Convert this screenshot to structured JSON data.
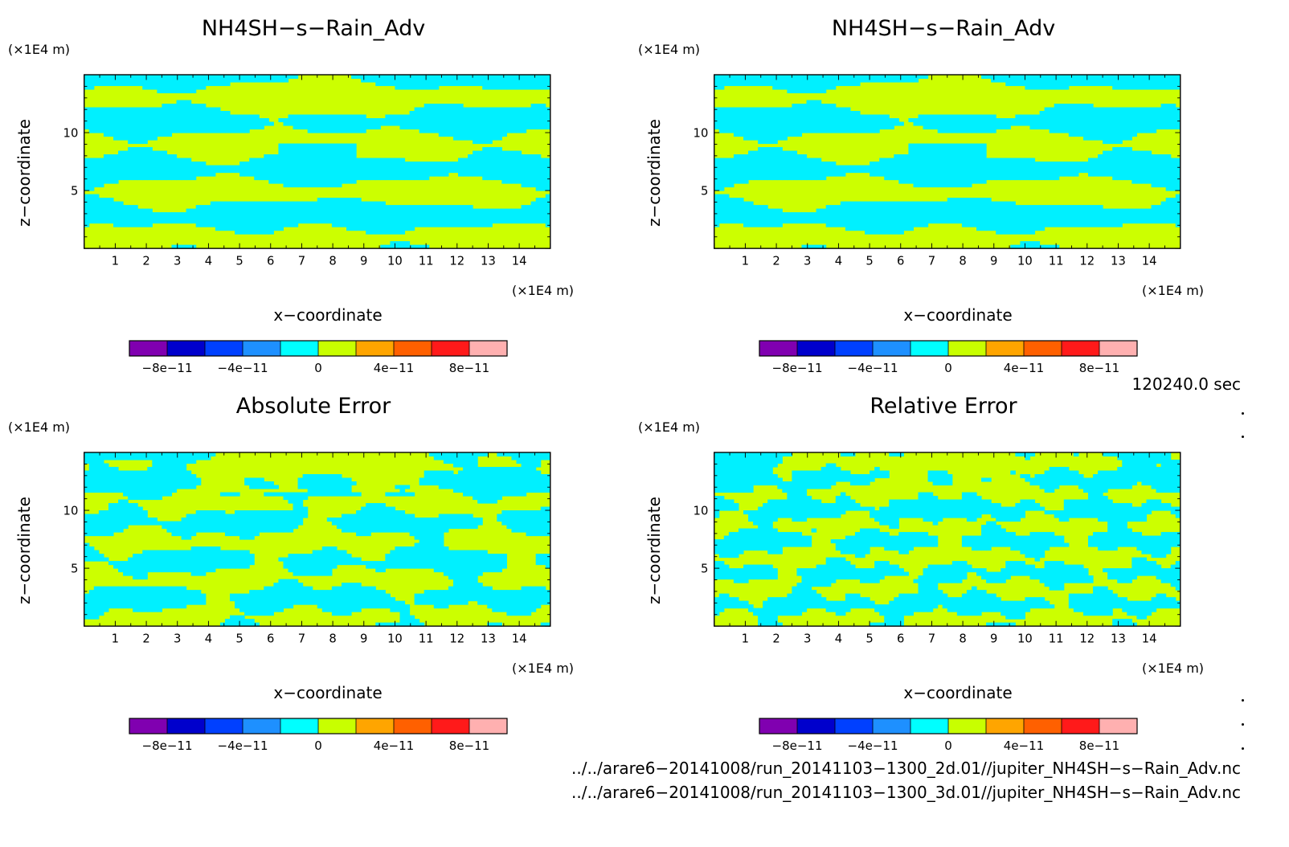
{
  "colors": {
    "levels": [
      "#8000b0",
      "#0000cc",
      "#0040ff",
      "#1e90ff",
      "#00ffff",
      "#c8ff00",
      "#ffa500",
      "#ff6000",
      "#ff1a1a",
      "#ffb0b0"
    ],
    "low_fill": "#00f0ff",
    "high_fill": "#ccff00"
  },
  "panels": [
    {
      "title": "NH4SH−s−Rain_Adv",
      "pattern": "a"
    },
    {
      "title": "NH4SH−s−Rain_Adv",
      "pattern": "a"
    },
    {
      "title": "Absolute Error",
      "pattern": "b"
    },
    {
      "title": "Relative Error",
      "pattern": "c"
    }
  ],
  "axis": {
    "xlabel": "x−coordinate",
    "ylabel": "z−coordinate",
    "x_unit": "(×1E4 m)",
    "y_unit": "(×1E4 m)"
  },
  "colorbar": {
    "labels": [
      "−8e−11",
      "−4e−11",
      "0",
      "4e−11",
      "8e−11"
    ]
  },
  "time_label": "120240.0 sec",
  "files": [
    "../../arare6−20141008/run_20141103−1300_2d.01//jupiter_NH4SH−s−Rain_Adv.nc",
    "../../arare6−20141008/run_20141103−1300_3d.01//jupiter_NH4SH−s−Rain_Adv.nc"
  ],
  "chart_data": [
    {
      "type": "heatmap",
      "title": "NH4SH−s−Rain_Adv",
      "xlabel": "x−coordinate",
      "ylabel": "z−coordinate",
      "xlim": [
        0,
        15
      ],
      "ylim": [
        0,
        15
      ],
      "xticks": [
        1,
        2,
        3,
        4,
        5,
        6,
        7,
        8,
        9,
        10,
        11,
        12,
        13,
        14
      ],
      "yticks": [
        5,
        10
      ],
      "color_levels": [
        -1e-10,
        -8e-11,
        -6e-11,
        -4e-11,
        -2e-11,
        0,
        2e-11,
        4e-11,
        6e-11,
        8e-11,
        1e-10
      ]
    },
    {
      "type": "heatmap",
      "title": "NH4SH−s−Rain_Adv",
      "xlabel": "x−coordinate",
      "ylabel": "z−coordinate",
      "xlim": [
        0,
        15
      ],
      "ylim": [
        0,
        15
      ],
      "xticks": [
        1,
        2,
        3,
        4,
        5,
        6,
        7,
        8,
        9,
        10,
        11,
        12,
        13,
        14
      ],
      "yticks": [
        5,
        10
      ],
      "color_levels": [
        -1e-10,
        -8e-11,
        -6e-11,
        -4e-11,
        -2e-11,
        0,
        2e-11,
        4e-11,
        6e-11,
        8e-11,
        1e-10
      ]
    },
    {
      "type": "heatmap",
      "title": "Absolute Error",
      "xlabel": "x−coordinate",
      "ylabel": "z−coordinate",
      "xlim": [
        0,
        15
      ],
      "ylim": [
        0,
        15
      ],
      "xticks": [
        1,
        2,
        3,
        4,
        5,
        6,
        7,
        8,
        9,
        10,
        11,
        12,
        13,
        14
      ],
      "yticks": [
        5,
        10
      ],
      "color_levels": [
        -1e-10,
        -8e-11,
        -6e-11,
        -4e-11,
        -2e-11,
        0,
        2e-11,
        4e-11,
        6e-11,
        8e-11,
        1e-10
      ]
    },
    {
      "type": "heatmap",
      "title": "Relative Error",
      "xlabel": "x−coordinate",
      "ylabel": "z−coordinate",
      "xlim": [
        0,
        15
      ],
      "ylim": [
        0,
        15
      ],
      "xticks": [
        1,
        2,
        3,
        4,
        5,
        6,
        7,
        8,
        9,
        10,
        11,
        12,
        13,
        14
      ],
      "yticks": [
        5,
        10
      ],
      "color_levels": [
        -1e-10,
        -8e-11,
        -6e-11,
        -4e-11,
        -2e-11,
        0,
        2e-11,
        4e-11,
        6e-11,
        8e-11,
        1e-10
      ]
    }
  ]
}
